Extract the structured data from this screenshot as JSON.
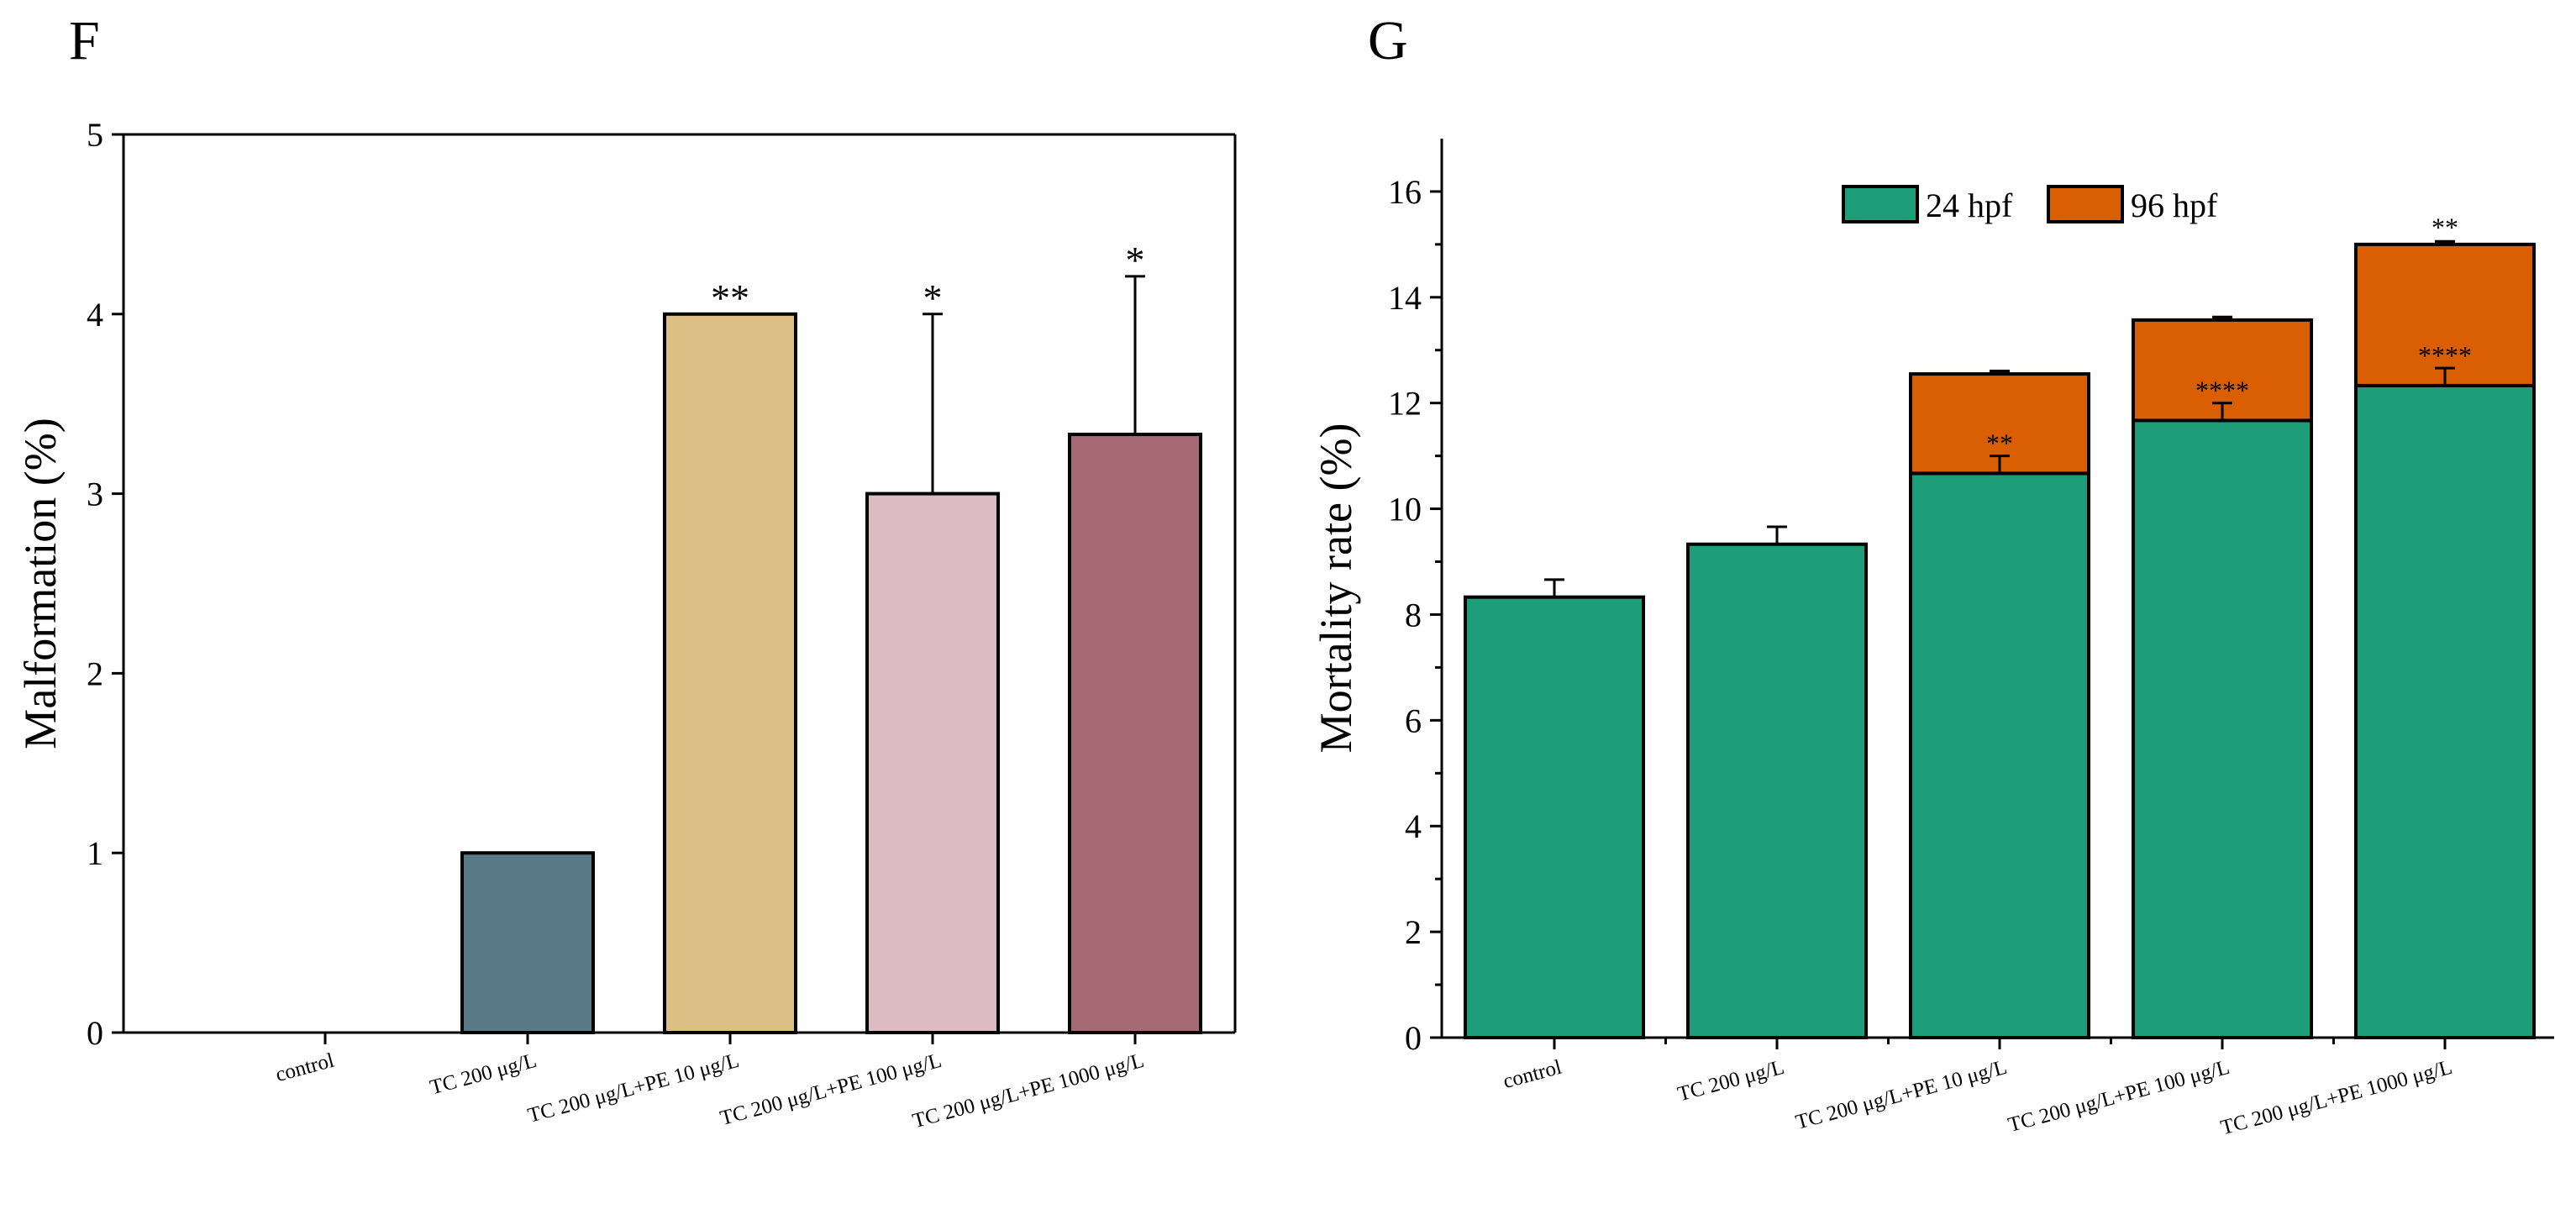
{
  "chart_data": [
    {
      "panel": "F",
      "type": "bar",
      "title": "",
      "xlabel": "",
      "ylabel": "Malformation (%)",
      "ylim": [
        0,
        5
      ],
      "yticks": [
        0,
        1,
        2,
        3,
        4,
        5
      ],
      "categories": [
        "control",
        "TC 200 μg/L",
        "TC 200 μg/L+PE 10 μg/L",
        "TC 200 μg/L+PE 100 μg/L",
        "TC 200 μg/L+PE 1000 μg/L"
      ],
      "values": [
        0,
        1,
        4,
        3,
        3.33
      ],
      "errors": [
        0,
        0,
        0,
        1,
        0.88
      ],
      "significance": [
        "",
        "",
        "**",
        "*",
        "*"
      ],
      "colors": [
        "#5a7a87",
        "#5a7a87",
        "#dbbf85",
        "#dcbcc2",
        "#a56a74"
      ],
      "grid": false
    },
    {
      "panel": "G",
      "type": "bar",
      "stacked": true,
      "title": "",
      "xlabel": "",
      "ylabel": "Mortality rate (%)",
      "ylim": [
        0,
        17
      ],
      "yticks": [
        0,
        2,
        4,
        6,
        8,
        10,
        12,
        14,
        16
      ],
      "categories": [
        "control",
        "TC 200 μg/L",
        "TC 200 μg/L+PE 10 μg/L",
        "TC 200 μg/L+PE 100 μg/L",
        "TC 200 μg/L+PE 1000 μg/L"
      ],
      "legend_position": "top-center",
      "series": [
        {
          "name": "24 hpf",
          "color": "#1e9e78",
          "values": [
            8.33,
            9.33,
            10.67,
            11.67,
            12.33
          ],
          "errors": [
            0.33,
            0.33,
            0.33,
            0.33,
            0.33
          ],
          "significance": [
            "",
            "",
            "**",
            "****",
            "****"
          ]
        },
        {
          "name": "96 hpf",
          "color": "#d95f02",
          "values": [
            0,
            0,
            1.88,
            1.9,
            2.67
          ],
          "errors": [
            0,
            0,
            0.05,
            0.05,
            0.05
          ],
          "significance": [
            "",
            "",
            "",
            "",
            "**"
          ]
        }
      ],
      "grid": false
    }
  ]
}
